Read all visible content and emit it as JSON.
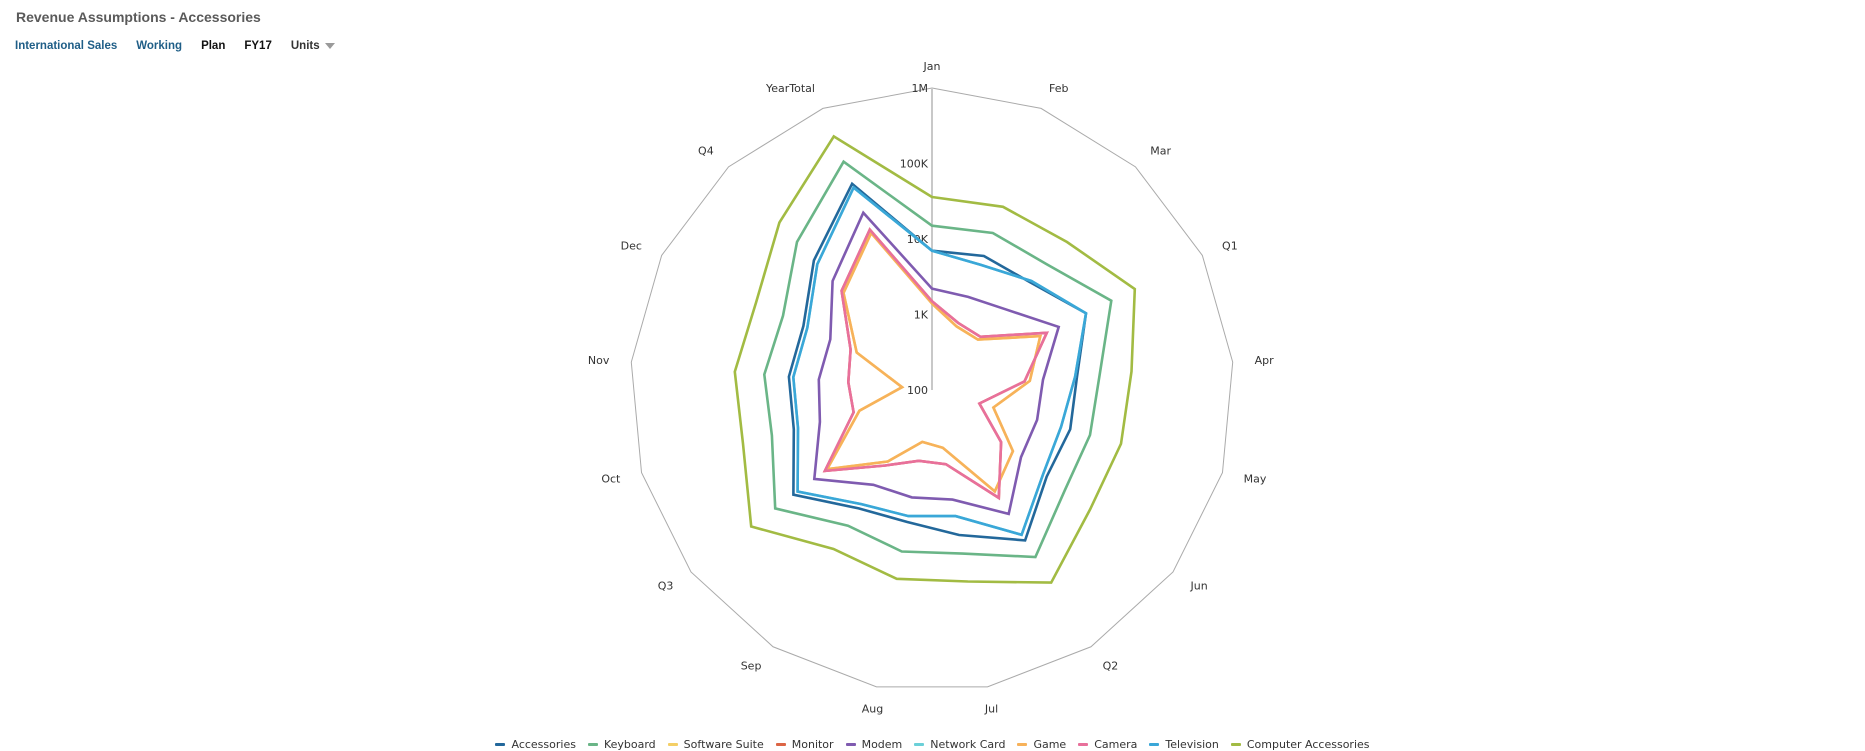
{
  "header": {
    "title": "Revenue Assumptions - Accessories",
    "pov": [
      {
        "label": "International Sales",
        "style": "link"
      },
      {
        "label": "Working",
        "style": "link"
      },
      {
        "label": "Plan",
        "style": "dark"
      },
      {
        "label": "FY17",
        "style": "dark"
      }
    ],
    "units_label": "Units"
  },
  "colors": {
    "title": "#5a5a5a",
    "pov_link": "#1f5e87",
    "grid": "#aaaaaa",
    "axis": "#c8c8c8"
  },
  "chart_data": {
    "type": "radar",
    "title": "",
    "scale": "log",
    "axis_ticks": [
      "100",
      "1K",
      "10K",
      "100K",
      "1M"
    ],
    "axis_tick_values": [
      100,
      1000,
      10000,
      100000,
      1000000
    ],
    "categories": [
      "Jan",
      "Feb",
      "Mar",
      "Q1",
      "Apr",
      "May",
      "Jun",
      "Q2",
      "Jul",
      "Aug",
      "Sep",
      "Q3",
      "Oct",
      "Nov",
      "Dec",
      "Q4",
      "YearTotal"
    ],
    "legend_position": "bottom",
    "series": [
      {
        "name": "Accessories",
        "color": "#23689b",
        "values": [
          7000,
          8000,
          8500,
          19000,
          8500,
          8000,
          8000,
          22000,
          9000,
          6000,
          7000,
          20000,
          8000,
          8000,
          8000,
          21000,
          85000
        ]
      },
      {
        "name": "Keyboard",
        "color": "#6ab587",
        "values": [
          15000,
          17000,
          18000,
          45000,
          17000,
          15000,
          16000,
          40000,
          16000,
          15000,
          13000,
          40000,
          16000,
          17000,
          16000,
          45000,
          175000
        ]
      },
      {
        "name": "Software Suite",
        "color": "#f4cf66",
        "values": [
          1400,
          800,
          800,
          4000,
          2000,
          700,
          2200,
          3800,
          600,
          500,
          1300,
          5500,
          1000,
          250,
          1300,
          5500,
          17000
        ]
      },
      {
        "name": "Monitor",
        "color": "#dc6545",
        "values": [
          1500,
          900,
          900,
          5000,
          1700,
          450,
          1400,
          4800,
          1000,
          900,
          1500,
          6000,
          1200,
          1300,
          1600,
          6000,
          19000
        ]
      },
      {
        "name": "Modem",
        "color": "#7f5bb0",
        "values": [
          2200,
          2100,
          2800,
          7500,
          3000,
          2800,
          3000,
          8500,
          3000,
          2800,
          3000,
          9000,
          3500,
          3200,
          3200,
          9000,
          33000
        ]
      },
      {
        "name": "Network Card",
        "color": "#6bd0d8",
        "values": [
          7000,
          6000,
          9000,
          19000,
          8000,
          6000,
          7000,
          18000,
          5000,
          5000,
          6000,
          17000,
          7000,
          7000,
          7000,
          18000,
          75000
        ]
      },
      {
        "name": "Game",
        "color": "#f7b25a",
        "values": [
          1400,
          800,
          800,
          4000,
          2000,
          700,
          2200,
          3800,
          600,
          500,
          1300,
          5500,
          1000,
          250,
          1300,
          5500,
          17000
        ]
      },
      {
        "name": "Camera",
        "color": "#e8709b",
        "values": [
          1500,
          900,
          900,
          5000,
          1700,
          450,
          1400,
          4800,
          1000,
          900,
          1500,
          6000,
          1200,
          1300,
          1600,
          6000,
          19000
        ]
      },
      {
        "name": "Television",
        "color": "#3aa7d8",
        "values": [
          7000,
          6000,
          9000,
          19000,
          8000,
          6000,
          7000,
          18000,
          5000,
          5000,
          6000,
          17000,
          7000,
          7000,
          7000,
          18000,
          75000
        ]
      },
      {
        "name": "Computer Accessories",
        "color": "#a2bb43",
        "values": [
          36000,
          40000,
          45000,
          100000,
          45000,
          40000,
          42000,
          100000,
          38000,
          35000,
          30000,
          100000,
          40000,
          42000,
          40000,
          100000,
          400000
        ]
      }
    ]
  }
}
